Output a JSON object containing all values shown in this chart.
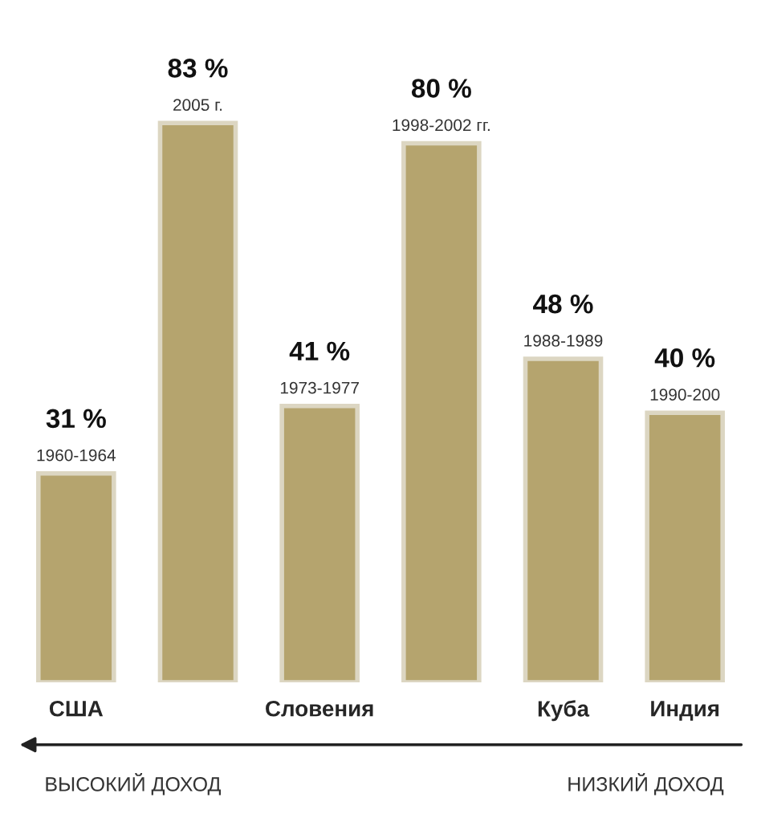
{
  "chart_data": {
    "type": "bar",
    "categories": [
      "США",
      null,
      "Словения",
      null,
      "Куба",
      "Индия"
    ],
    "values": [
      31,
      83,
      41,
      80,
      48,
      40
    ],
    "value_labels": [
      "31 %\n1960-1964",
      "83 %\n2005 г.",
      "41 %\n1973-1977",
      "80 %\n1998-2002 гг.",
      "48 %\n1988-1989",
      "40 %\n1990-200"
    ],
    "color": "#b5a46e",
    "annotations": [
      "ВЫСОКИЙ ДОХОД",
      "НИЗКИЙ ДОХОД"
    ],
    "grid": false,
    "legend": false
  }
}
